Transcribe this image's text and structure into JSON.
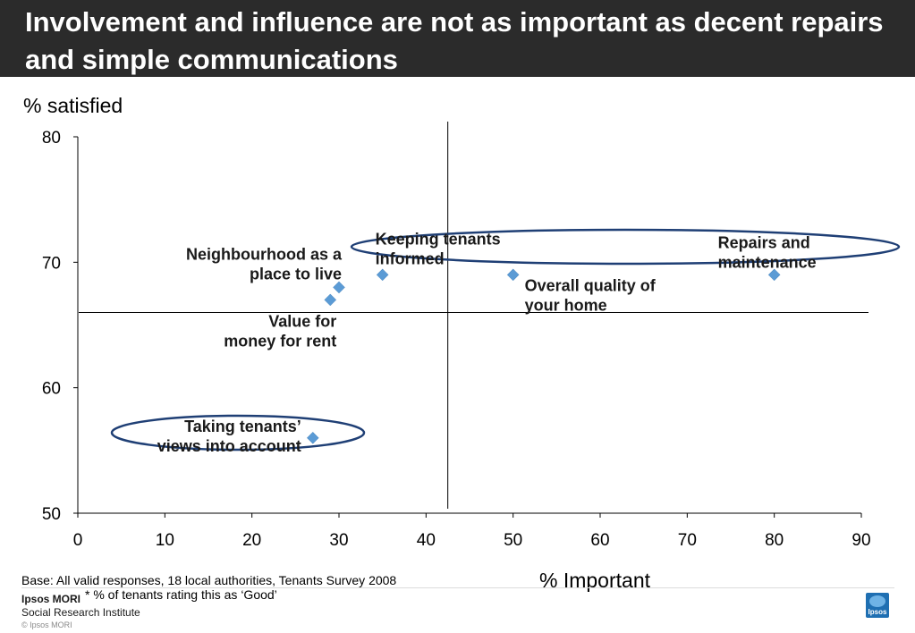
{
  "slide": {
    "title": "Involvement and influence are not as important as decent repairs and simple communications",
    "base_note": "Base: All valid responses, 18 local authorities, Tenants Survey 2008",
    "footnote": "* % of tenants rating this as ‘Good’",
    "brand_name": "Ipsos MORI",
    "brand_sub": "Social Research Institute",
    "copyright": "© Ipsos MORI",
    "logo_text": "Ipsos"
  },
  "chart_data": {
    "type": "scatter",
    "xlabel": "% Important",
    "ylabel": "% satisfied",
    "xlim": [
      0,
      90
    ],
    "ylim": [
      50,
      80
    ],
    "x_ticks": [
      "0",
      "10",
      "20",
      "30",
      "40",
      "50",
      "60",
      "70",
      "80",
      "90"
    ],
    "y_ticks": [
      "50",
      "60",
      "70",
      "80"
    ],
    "point_color": "#5b9bd5",
    "highlight_color": "#1f3f75",
    "points": [
      {
        "label": "Repairs and maintenance",
        "label_lines": [
          "Repairs and",
          "maintenance"
        ],
        "x": 80,
        "y": 69
      },
      {
        "label": "Overall quality of your home",
        "label_lines": [
          "Overall quality of",
          "your home"
        ],
        "x": 50,
        "y": 69
      },
      {
        "label": "Keeping tenants informed",
        "label_lines": [
          "Keeping tenants",
          "informed"
        ],
        "x": 35,
        "y": 69
      },
      {
        "label": "Neighbourhood as a place to live",
        "label_lines": [
          "Neighbourhood as a",
          "place to live"
        ],
        "x": 30,
        "y": 68
      },
      {
        "label": "Value for money for rent",
        "label_lines": [
          "Value for",
          "money for rent"
        ],
        "x": 29,
        "y": 67
      },
      {
        "label": "Taking tenants' views into account",
        "label_lines": [
          "Taking tenants’",
          "views into account"
        ],
        "x": 27,
        "y": 56
      }
    ],
    "reference_lines": {
      "x": 42.5,
      "y": 66
    }
  }
}
